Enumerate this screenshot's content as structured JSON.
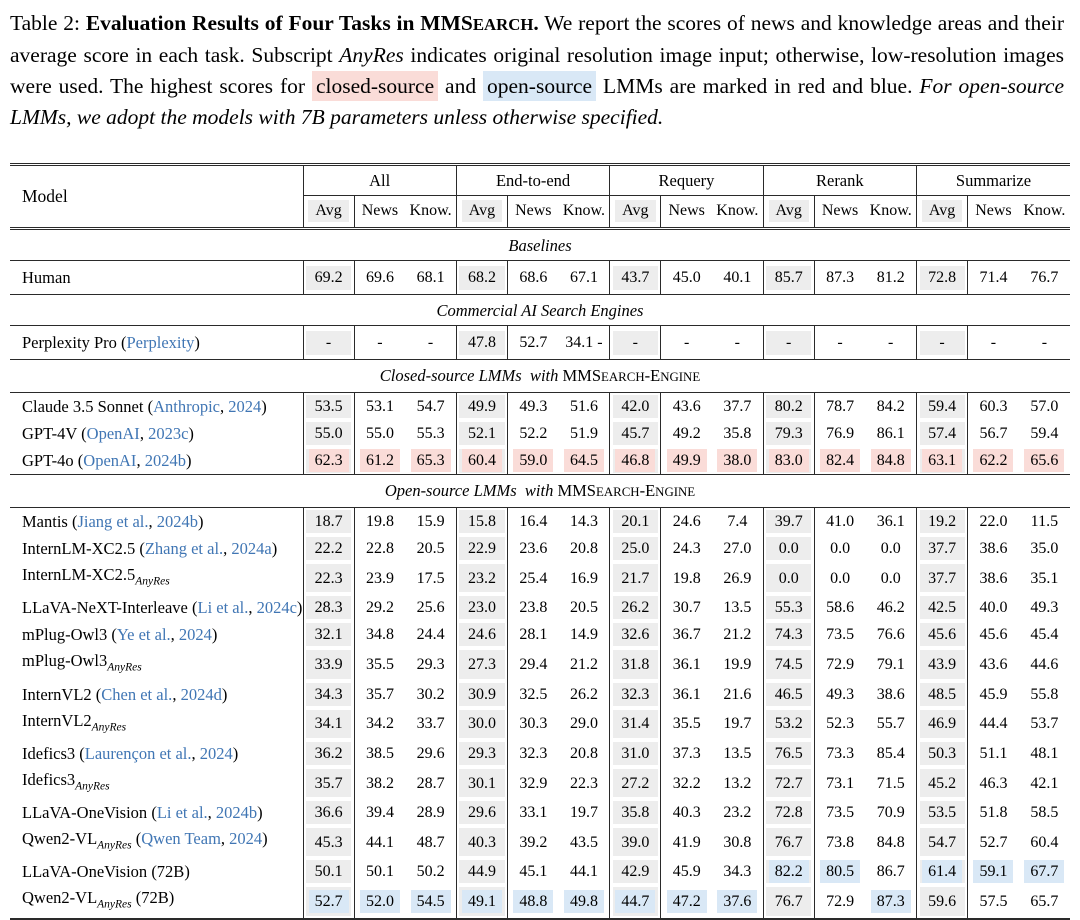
{
  "caption": {
    "segments": [
      {
        "t": "Table 2: ",
        "style": ""
      },
      {
        "t": "Evaluation Results of Four Tasks in ",
        "style": "bold"
      },
      {
        "t": "MMS",
        "style": "bold"
      },
      {
        "t": "EARCH",
        "style": "bold sc-small"
      },
      {
        "t": ".",
        "style": "bold"
      },
      {
        "t": "  We report the scores of news and knowledge areas and their average score in each task. Subscript ",
        "style": ""
      },
      {
        "t": "AnyRes",
        "style": "italic"
      },
      {
        "t": " indicates original resolution image input; otherwise, low-resolution images were used. The highest scores for ",
        "style": ""
      },
      {
        "t": "closed-source",
        "style": "hl-red"
      },
      {
        "t": " and ",
        "style": ""
      },
      {
        "t": "open-source",
        "style": "hl-blue"
      },
      {
        "t": " LMMs are marked in red and blue. ",
        "style": ""
      },
      {
        "t": "For open-source LMMs, we adopt the models with 7B parameters unless otherwise specified.",
        "style": "italic"
      }
    ]
  },
  "table": {
    "model_header": "Model",
    "groups": [
      "All",
      "End-to-end",
      "Requery",
      "Rerank",
      "Summarize"
    ],
    "subcols": [
      "Avg",
      "News",
      "Know."
    ],
    "sections": [
      {
        "title": [
          {
            "t": "Baselines",
            "style": "italic"
          }
        ],
        "rows": [
          {
            "name": "Human",
            "values": [
              "69.2",
              "69.6",
              "68.1",
              "68.2",
              "68.6",
              "67.1",
              "43.7",
              "45.0",
              "40.1",
              "85.7",
              "87.3",
              "81.2",
              "72.8",
              "71.4",
              "76.7"
            ]
          }
        ]
      },
      {
        "title": [
          {
            "t": "Commercial AI Search Engines",
            "style": "italic"
          }
        ],
        "rows": [
          {
            "name": "Perplexity Pro",
            "cite": {
              "pre": " (",
              "author": "Perplexity",
              "post": ")"
            },
            "values": [
              "-",
              "-",
              "-",
              "47.8",
              "52.7",
              "34.1 -",
              "-",
              "-",
              "-",
              "-",
              "-",
              "-",
              "-",
              "-",
              "-"
            ]
          }
        ]
      },
      {
        "title": [
          {
            "t": "Closed-source LMMs  with ",
            "style": "italic"
          },
          {
            "t": "MMS",
            "style": ""
          },
          {
            "t": "EARCH",
            "style": "sc-small"
          },
          {
            "t": "-E",
            "style": ""
          },
          {
            "t": "NGINE",
            "style": "sc-small"
          }
        ],
        "rows": [
          {
            "name": "Claude 3.5 Sonnet",
            "cite": {
              "pre": " (",
              "author": "Anthropic",
              "sep": ", ",
              "year": "2024",
              "post": ")"
            },
            "values": [
              "53.5",
              "53.1",
              "54.7",
              "49.9",
              "49.3",
              "51.6",
              "42.0",
              "43.6",
              "37.7",
              "80.2",
              "78.7",
              "84.2",
              "59.4",
              "60.3",
              "57.0"
            ]
          },
          {
            "name": "GPT-4V",
            "cite": {
              "pre": " (",
              "author": "OpenAI",
              "sep": ", ",
              "year": "2023c",
              "post": ")"
            },
            "values": [
              "55.0",
              "55.0",
              "55.3",
              "52.1",
              "52.2",
              "51.9",
              "45.7",
              "49.2",
              "35.8",
              "79.3",
              "76.9",
              "86.1",
              "57.4",
              "56.7",
              "59.4"
            ]
          },
          {
            "name": "GPT-4o",
            "cite": {
              "pre": " (",
              "author": "OpenAI",
              "sep": ", ",
              "year": "2024b",
              "post": ")"
            },
            "values": [
              "62.3",
              "61.2",
              "65.3",
              "60.4",
              "59.0",
              "64.5",
              "46.8",
              "49.9",
              "38.0",
              "83.0",
              "82.4",
              "84.8",
              "63.1",
              "62.2",
              "65.6"
            ],
            "hl_red": [
              0,
              1,
              2,
              3,
              4,
              5,
              6,
              7,
              8,
              9,
              10,
              11,
              12,
              13,
              14
            ]
          }
        ]
      },
      {
        "title": [
          {
            "t": "Open-source LMMs  with ",
            "style": "italic"
          },
          {
            "t": "MMS",
            "style": ""
          },
          {
            "t": "EARCH",
            "style": "sc-small"
          },
          {
            "t": "-E",
            "style": ""
          },
          {
            "t": "NGINE",
            "style": "sc-small"
          }
        ],
        "rows": [
          {
            "name": "Mantis",
            "cite": {
              "pre": " (",
              "author": "Jiang et al.",
              "sep": ", ",
              "year": "2024b",
              "post": ")"
            },
            "values": [
              "18.7",
              "19.8",
              "15.9",
              "15.8",
              "16.4",
              "14.3",
              "20.1",
              "24.6",
              "7.4",
              "39.7",
              "41.0",
              "36.1",
              "19.2",
              "22.0",
              "11.5"
            ]
          },
          {
            "name": "InternLM-XC2.5",
            "cite": {
              "pre": " (",
              "author": "Zhang et al.",
              "sep": ", ",
              "year": "2024a",
              "post": ")"
            },
            "values": [
              "22.2",
              "22.8",
              "20.5",
              "22.9",
              "23.6",
              "20.8",
              "25.0",
              "24.3",
              "27.0",
              "0.0",
              "0.0",
              "0.0",
              "37.7",
              "38.6",
              "35.0"
            ]
          },
          {
            "name": "InternLM-XC2.5",
            "sub": "AnyRes",
            "values": [
              "22.3",
              "23.9",
              "17.5",
              "23.2",
              "25.4",
              "16.9",
              "21.7",
              "19.8",
              "26.9",
              "0.0",
              "0.0",
              "0.0",
              "37.7",
              "38.6",
              "35.1"
            ]
          },
          {
            "name": "LLaVA-NeXT-Interleave",
            "cite": {
              "pre": " (",
              "author": "Li et al.",
              "sep": ", ",
              "year": "2024c",
              "post": ")"
            },
            "values": [
              "28.3",
              "29.2",
              "25.6",
              "23.0",
              "23.8",
              "20.5",
              "26.2",
              "30.7",
              "13.5",
              "55.3",
              "58.6",
              "46.2",
              "42.5",
              "40.0",
              "49.3"
            ]
          },
          {
            "name": "mPlug-Owl3",
            "cite": {
              "pre": " (",
              "author": "Ye et al.",
              "sep": ", ",
              "year": "2024",
              "post": ")"
            },
            "values": [
              "32.1",
              "34.8",
              "24.4",
              "24.6",
              "28.1",
              "14.9",
              "32.6",
              "36.7",
              "21.2",
              "74.3",
              "73.5",
              "76.6",
              "45.6",
              "45.6",
              "45.4"
            ]
          },
          {
            "name": "mPlug-Owl3",
            "sub": "AnyRes",
            "values": [
              "33.9",
              "35.5",
              "29.3",
              "27.3",
              "29.4",
              "21.2",
              "31.8",
              "36.1",
              "19.9",
              "74.5",
              "72.9",
              "79.1",
              "43.9",
              "43.6",
              "44.6"
            ]
          },
          {
            "name": "InternVL2",
            "cite": {
              "pre": " (",
              "author": "Chen et al.",
              "sep": ", ",
              "year": "2024d",
              "post": ")"
            },
            "values": [
              "34.3",
              "35.7",
              "30.2",
              "30.9",
              "32.5",
              "26.2",
              "32.3",
              "36.1",
              "21.6",
              "46.5",
              "49.3",
              "38.6",
              "48.5",
              "45.9",
              "55.8"
            ]
          },
          {
            "name": "InternVL2",
            "sub": "AnyRes",
            "values": [
              "34.1",
              "34.2",
              "33.7",
              "30.0",
              "30.3",
              "29.0",
              "31.4",
              "35.5",
              "19.7",
              "53.2",
              "52.3",
              "55.7",
              "46.9",
              "44.4",
              "53.7"
            ]
          },
          {
            "name": "Idefics3",
            "cite": {
              "pre": " (",
              "author": "Laurençon et al.",
              "sep": ", ",
              "year": "2024",
              "post": ")"
            },
            "values": [
              "36.2",
              "38.5",
              "29.6",
              "29.3",
              "32.3",
              "20.8",
              "31.0",
              "37.3",
              "13.5",
              "76.5",
              "73.3",
              "85.4",
              "50.3",
              "51.1",
              "48.1"
            ]
          },
          {
            "name": "Idefics3",
            "sub": "AnyRes",
            "values": [
              "35.7",
              "38.2",
              "28.7",
              "30.1",
              "32.9",
              "22.3",
              "27.2",
              "32.2",
              "13.2",
              "72.7",
              "73.1",
              "71.5",
              "45.2",
              "46.3",
              "42.1"
            ]
          },
          {
            "name": "LLaVA-OneVision",
            "cite": {
              "pre": " (",
              "author": "Li et al.",
              "sep": ", ",
              "year": "2024b",
              "post": ")"
            },
            "values": [
              "36.6",
              "39.4",
              "28.9",
              "29.6",
              "33.1",
              "19.7",
              "35.8",
              "40.3",
              "23.2",
              "72.8",
              "73.5",
              "70.9",
              "53.5",
              "51.8",
              "58.5"
            ]
          },
          {
            "name": "Qwen2-VL",
            "sub": "AnyRes",
            "cite": {
              "pre": " (",
              "author": "Qwen Team",
              "sep": ", ",
              "year": "2024",
              "post": ")"
            },
            "values": [
              "45.3",
              "44.1",
              "48.7",
              "40.3",
              "39.2",
              "43.5",
              "39.0",
              "41.9",
              "30.8",
              "76.7",
              "73.8",
              "84.8",
              "54.7",
              "52.7",
              "60.4"
            ]
          },
          {
            "name": "LLaVA-OneVision",
            "suffix": " (72B)",
            "values": [
              "50.1",
              "50.1",
              "50.2",
              "44.9",
              "45.1",
              "44.1",
              "42.9",
              "45.9",
              "34.3",
              "82.2",
              "80.5",
              "86.7",
              "61.4",
              "59.1",
              "67.7"
            ],
            "hl_blue": [
              9,
              10,
              12,
              13,
              14
            ]
          },
          {
            "name": "Qwen2-VL",
            "sub": "AnyRes",
            "suffix": " (72B)",
            "values": [
              "52.7",
              "52.0",
              "54.5",
              "49.1",
              "48.8",
              "49.8",
              "44.7",
              "47.2",
              "37.6",
              "76.7",
              "72.9",
              "87.3",
              "59.6",
              "57.5",
              "65.7"
            ],
            "hl_blue": [
              0,
              1,
              2,
              3,
              4,
              5,
              6,
              7,
              8,
              11
            ]
          }
        ]
      }
    ]
  }
}
